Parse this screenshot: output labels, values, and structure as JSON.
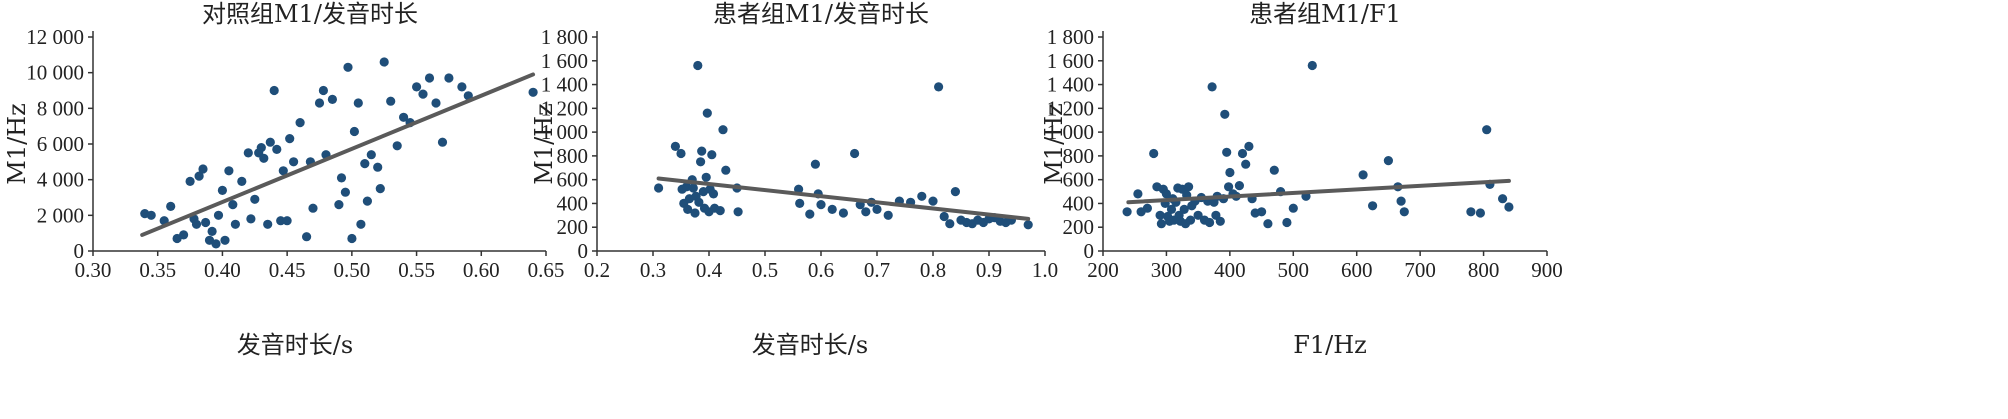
{
  "chart_data": [
    {
      "type": "scatter",
      "title": "对照组M1/发音时长",
      "xlabel": "发音时长/s",
      "ylabel": "M1/Hz",
      "xlim": [
        0.3,
        0.65
      ],
      "ylim": [
        0,
        12000
      ],
      "xticks": [
        0.3,
        0.35,
        0.4,
        0.45,
        0.5,
        0.55,
        0.6,
        0.65
      ],
      "xtick_labels": [
        "0.30",
        "0.35",
        "0.40",
        "0.45",
        "0.50",
        "0.55",
        "0.60",
        "0.65"
      ],
      "yticks": [
        0,
        2000,
        4000,
        6000,
        8000,
        10000,
        12000
      ],
      "ytick_labels": [
        "0",
        "2 000",
        "4 000",
        "6 000",
        "8 000",
        "10 000",
        "12 000"
      ],
      "points": [
        [
          0.34,
          2100
        ],
        [
          0.345,
          2000
        ],
        [
          0.355,
          1700
        ],
        [
          0.36,
          2500
        ],
        [
          0.365,
          700
        ],
        [
          0.37,
          900
        ],
        [
          0.375,
          3900
        ],
        [
          0.378,
          1800
        ],
        [
          0.38,
          1500
        ],
        [
          0.382,
          4200
        ],
        [
          0.385,
          4600
        ],
        [
          0.387,
          1600
        ],
        [
          0.39,
          600
        ],
        [
          0.392,
          1100
        ],
        [
          0.395,
          400
        ],
        [
          0.397,
          2000
        ],
        [
          0.4,
          3400
        ],
        [
          0.402,
          600
        ],
        [
          0.405,
          4500
        ],
        [
          0.408,
          2600
        ],
        [
          0.41,
          1500
        ],
        [
          0.415,
          3900
        ],
        [
          0.42,
          5500
        ],
        [
          0.422,
          1800
        ],
        [
          0.425,
          2900
        ],
        [
          0.428,
          5500
        ],
        [
          0.43,
          5800
        ],
        [
          0.432,
          5200
        ],
        [
          0.435,
          1500
        ],
        [
          0.437,
          6100
        ],
        [
          0.44,
          9000
        ],
        [
          0.442,
          5700
        ],
        [
          0.445,
          1700
        ],
        [
          0.447,
          4500
        ],
        [
          0.45,
          1700
        ],
        [
          0.452,
          6300
        ],
        [
          0.455,
          5000
        ],
        [
          0.46,
          7200
        ],
        [
          0.465,
          800
        ],
        [
          0.468,
          5000
        ],
        [
          0.47,
          2400
        ],
        [
          0.475,
          8300
        ],
        [
          0.478,
          9000
        ],
        [
          0.48,
          5400
        ],
        [
          0.485,
          8500
        ],
        [
          0.49,
          2600
        ],
        [
          0.492,
          4100
        ],
        [
          0.495,
          3300
        ],
        [
          0.497,
          10300
        ],
        [
          0.5,
          700
        ],
        [
          0.502,
          6700
        ],
        [
          0.505,
          8300
        ],
        [
          0.507,
          1500
        ],
        [
          0.51,
          4900
        ],
        [
          0.512,
          2800
        ],
        [
          0.515,
          5400
        ],
        [
          0.52,
          4700
        ],
        [
          0.522,
          3500
        ],
        [
          0.525,
          10600
        ],
        [
          0.53,
          8400
        ],
        [
          0.535,
          5900
        ],
        [
          0.54,
          7500
        ],
        [
          0.545,
          7200
        ],
        [
          0.55,
          9200
        ],
        [
          0.555,
          8800
        ],
        [
          0.56,
          9700
        ],
        [
          0.565,
          8300
        ],
        [
          0.57,
          6100
        ],
        [
          0.575,
          9700
        ],
        [
          0.585,
          9200
        ],
        [
          0.59,
          8700
        ],
        [
          0.64,
          8900
        ]
      ],
      "fit": {
        "x": [
          0.338,
          0.64
        ],
        "y": [
          900,
          9900
        ]
      }
    },
    {
      "type": "scatter",
      "title": "患者组M1/发音时长",
      "xlabel": "发音时长/s",
      "ylabel": "M1/Hz",
      "xlim": [
        0.2,
        1.0
      ],
      "ylim": [
        0,
        1800
      ],
      "xticks": [
        0.2,
        0.3,
        0.4,
        0.5,
        0.6,
        0.7,
        0.8,
        0.9,
        1.0
      ],
      "xtick_labels": [
        "0.2",
        "0.3",
        "0.4",
        "0.5",
        "0.6",
        "0.7",
        "0.8",
        "0.9",
        "1.0"
      ],
      "yticks": [
        0,
        200,
        400,
        600,
        800,
        1000,
        1200,
        1400,
        1600,
        1800
      ],
      "ytick_labels": [
        "0",
        "200",
        "400",
        "600",
        "800",
        "1 000",
        "1 200",
        "1 400",
        "1 600",
        "1 800"
      ],
      "points": [
        [
          0.31,
          530
        ],
        [
          0.34,
          880
        ],
        [
          0.35,
          820
        ],
        [
          0.352,
          520
        ],
        [
          0.355,
          400
        ],
        [
          0.36,
          540
        ],
        [
          0.362,
          350
        ],
        [
          0.365,
          440
        ],
        [
          0.37,
          600
        ],
        [
          0.372,
          530
        ],
        [
          0.375,
          320
        ],
        [
          0.377,
          460
        ],
        [
          0.38,
          1560
        ],
        [
          0.382,
          410
        ],
        [
          0.385,
          750
        ],
        [
          0.387,
          840
        ],
        [
          0.39,
          500
        ],
        [
          0.392,
          360
        ],
        [
          0.395,
          620
        ],
        [
          0.397,
          1160
        ],
        [
          0.4,
          330
        ],
        [
          0.402,
          520
        ],
        [
          0.405,
          810
        ],
        [
          0.408,
          480
        ],
        [
          0.41,
          360
        ],
        [
          0.42,
          340
        ],
        [
          0.425,
          1020
        ],
        [
          0.43,
          680
        ],
        [
          0.45,
          530
        ],
        [
          0.452,
          330
        ],
        [
          0.56,
          520
        ],
        [
          0.562,
          400
        ],
        [
          0.58,
          310
        ],
        [
          0.59,
          730
        ],
        [
          0.595,
          480
        ],
        [
          0.6,
          390
        ],
        [
          0.62,
          350
        ],
        [
          0.64,
          320
        ],
        [
          0.66,
          820
        ],
        [
          0.67,
          390
        ],
        [
          0.68,
          330
        ],
        [
          0.69,
          410
        ],
        [
          0.7,
          350
        ],
        [
          0.72,
          300
        ],
        [
          0.74,
          420
        ],
        [
          0.76,
          410
        ],
        [
          0.78,
          460
        ],
        [
          0.8,
          420
        ],
        [
          0.81,
          1380
        ],
        [
          0.82,
          290
        ],
        [
          0.83,
          230
        ],
        [
          0.84,
          500
        ],
        [
          0.85,
          260
        ],
        [
          0.86,
          240
        ],
        [
          0.87,
          230
        ],
        [
          0.88,
          260
        ],
        [
          0.89,
          240
        ],
        [
          0.9,
          270
        ],
        [
          0.91,
          280
        ],
        [
          0.92,
          250
        ],
        [
          0.93,
          240
        ],
        [
          0.94,
          260
        ],
        [
          0.97,
          220
        ]
      ],
      "fit": {
        "x": [
          0.31,
          0.97
        ],
        "y": [
          610,
          270
        ]
      }
    },
    {
      "type": "scatter",
      "title": "患者组M1/F1",
      "xlabel": "F1/Hz",
      "ylabel": "M1/Hz",
      "xlim": [
        200,
        900
      ],
      "ylim": [
        0,
        1800
      ],
      "xticks": [
        200,
        300,
        400,
        500,
        600,
        700,
        800,
        900
      ],
      "xtick_labels": [
        "200",
        "300",
        "400",
        "500",
        "600",
        "700",
        "800",
        "900"
      ],
      "yticks": [
        0,
        200,
        400,
        600,
        800,
        1000,
        1200,
        1400,
        1600,
        1800
      ],
      "ytick_labels": [
        "0",
        "200",
        "400",
        "600",
        "800",
        "1 000",
        "1 200",
        "1 400",
        "1 600",
        "1 800"
      ],
      "points": [
        [
          238,
          330
        ],
        [
          255,
          480
        ],
        [
          260,
          330
        ],
        [
          270,
          360
        ],
        [
          280,
          820
        ],
        [
          285,
          540
        ],
        [
          290,
          300
        ],
        [
          292,
          230
        ],
        [
          295,
          520
        ],
        [
          298,
          400
        ],
        [
          300,
          480
        ],
        [
          302,
          290
        ],
        [
          305,
          250
        ],
        [
          308,
          350
        ],
        [
          310,
          440
        ],
        [
          312,
          260
        ],
        [
          315,
          410
        ],
        [
          318,
          530
        ],
        [
          320,
          300
        ],
        [
          322,
          250
        ],
        [
          325,
          520
        ],
        [
          328,
          350
        ],
        [
          330,
          230
        ],
        [
          332,
          470
        ],
        [
          335,
          540
        ],
        [
          338,
          260
        ],
        [
          340,
          380
        ],
        [
          345,
          420
        ],
        [
          350,
          300
        ],
        [
          355,
          450
        ],
        [
          360,
          260
        ],
        [
          365,
          420
        ],
        [
          368,
          240
        ],
        [
          372,
          1380
        ],
        [
          375,
          410
        ],
        [
          378,
          300
        ],
        [
          380,
          460
        ],
        [
          385,
          250
        ],
        [
          390,
          440
        ],
        [
          392,
          1150
        ],
        [
          395,
          830
        ],
        [
          398,
          540
        ],
        [
          400,
          660
        ],
        [
          405,
          480
        ],
        [
          410,
          460
        ],
        [
          415,
          550
        ],
        [
          420,
          820
        ],
        [
          425,
          730
        ],
        [
          430,
          880
        ],
        [
          435,
          440
        ],
        [
          440,
          320
        ],
        [
          450,
          330
        ],
        [
          460,
          230
        ],
        [
          470,
          680
        ],
        [
          480,
          500
        ],
        [
          490,
          240
        ],
        [
          500,
          360
        ],
        [
          520,
          460
        ],
        [
          530,
          1560
        ],
        [
          610,
          640
        ],
        [
          625,
          380
        ],
        [
          650,
          760
        ],
        [
          665,
          540
        ],
        [
          670,
          420
        ],
        [
          675,
          330
        ],
        [
          780,
          330
        ],
        [
          795,
          320
        ],
        [
          805,
          1020
        ],
        [
          810,
          560
        ],
        [
          830,
          440
        ],
        [
          840,
          370
        ]
      ],
      "fit": {
        "x": [
          240,
          840
        ],
        "y": [
          410,
          590
        ]
      }
    }
  ]
}
